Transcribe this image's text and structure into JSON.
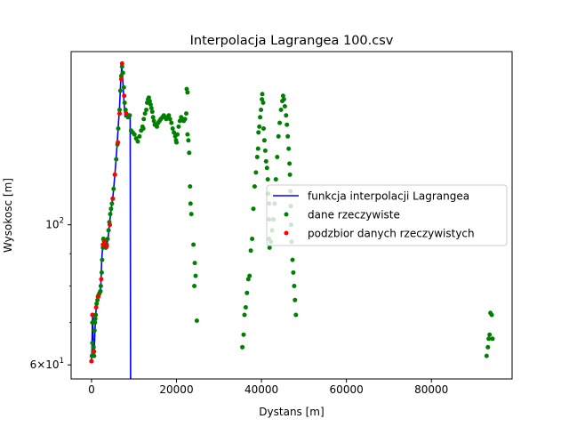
{
  "chart_data": {
    "type": "scatter",
    "title": "Interpolacja Lagrangea 100.csv",
    "xlabel": "Dystans [m]",
    "ylabel": "Wysokosc [m]",
    "xlim": [
      -4800,
      99000
    ],
    "ylim": [
      57,
      188
    ],
    "yscale": "log",
    "grid": false,
    "legend_position": "center-right",
    "x_ticks": [
      {
        "value": 0,
        "label": "0"
      },
      {
        "value": 20000,
        "label": "20000"
      },
      {
        "value": 40000,
        "label": "40000"
      },
      {
        "value": 60000,
        "label": "60000"
      },
      {
        "value": 80000,
        "label": "80000"
      }
    ],
    "y_ticks": [
      {
        "value": 60,
        "label": "6×10",
        "exp": "1"
      },
      {
        "value": 100,
        "label": "10",
        "exp": "2"
      }
    ],
    "y_minor_ticks": [
      70,
      80,
      90
    ],
    "legend": [
      {
        "label": "funkcja interpolacji Lagrangea",
        "kind": "line",
        "color": "#0000ff"
      },
      {
        "label": "dane rzeczywiste",
        "kind": "marker",
        "color": "#008000"
      },
      {
        "label": "podzbior danych rzeczywistych",
        "kind": "marker",
        "color": "#ff0000"
      }
    ],
    "series": [
      {
        "name": "funkcja interpolacji Lagrangea",
        "kind": "line",
        "color": "#0000ff",
        "points": [
          [
            0,
            60.8
          ],
          [
            100,
            63
          ],
          [
            200,
            70
          ],
          [
            300,
            72.5
          ],
          [
            400,
            64
          ],
          [
            600,
            62
          ],
          [
            800,
            68
          ],
          [
            1000,
            72
          ],
          [
            1200,
            76
          ],
          [
            1500,
            77
          ],
          [
            1800,
            77.5
          ],
          [
            2000,
            78.5
          ],
          [
            2200,
            80
          ],
          [
            2400,
            88
          ],
          [
            2600,
            92
          ],
          [
            2800,
            95
          ],
          [
            3000,
            94.5
          ],
          [
            3300,
            92
          ],
          [
            3600,
            93
          ],
          [
            3900,
            95
          ],
          [
            4200,
            100
          ],
          [
            4500,
            104
          ],
          [
            4800,
            108
          ],
          [
            5000,
            110
          ],
          [
            5300,
            116
          ],
          [
            5700,
            125
          ],
          [
            6000,
            133
          ],
          [
            6300,
            143
          ],
          [
            6600,
            154
          ],
          [
            6900,
            170
          ],
          [
            7100,
            178
          ],
          [
            7300,
            172
          ],
          [
            7600,
            158
          ],
          [
            7900,
            148
          ],
          [
            8200,
            150
          ],
          [
            8500,
            149
          ],
          [
            8800,
            148
          ],
          [
            9100,
            150
          ],
          [
            9200,
            57
          ]
        ]
      },
      {
        "name": "dane rzeczywiste",
        "kind": "scatter",
        "color": "#008000",
        "points": [
          [
            0,
            60.8
          ],
          [
            100,
            62
          ],
          [
            200,
            65
          ],
          [
            200,
            70
          ],
          [
            300,
            72
          ],
          [
            400,
            63
          ],
          [
            500,
            64
          ],
          [
            600,
            62
          ],
          [
            700,
            68
          ],
          [
            800,
            70
          ],
          [
            900,
            71
          ],
          [
            1000,
            72
          ],
          [
            1200,
            75
          ],
          [
            1400,
            76
          ],
          [
            1500,
            77
          ],
          [
            1700,
            77.5
          ],
          [
            1900,
            78
          ],
          [
            2100,
            78.5
          ],
          [
            2200,
            80
          ],
          [
            2400,
            84
          ],
          [
            2500,
            88
          ],
          [
            2700,
            92
          ],
          [
            2800,
            95
          ],
          [
            2900,
            94.5
          ],
          [
            3000,
            94
          ],
          [
            3200,
            92.5
          ],
          [
            3400,
            92
          ],
          [
            3600,
            93
          ],
          [
            3800,
            95
          ],
          [
            4000,
            98
          ],
          [
            4200,
            101
          ],
          [
            4400,
            104
          ],
          [
            4600,
            106
          ],
          [
            4800,
            108
          ],
          [
            5000,
            110
          ],
          [
            5200,
            114
          ],
          [
            5500,
            120
          ],
          [
            5800,
            127
          ],
          [
            6100,
            134
          ],
          [
            6300,
            142
          ],
          [
            6600,
            152
          ],
          [
            6800,
            163
          ],
          [
            7000,
            172
          ],
          [
            7200,
            178
          ],
          [
            7400,
            174
          ],
          [
            7600,
            165
          ],
          [
            7800,
            156
          ],
          [
            8000,
            152
          ],
          [
            8200,
            150
          ],
          [
            8400,
            149
          ],
          [
            8600,
            148
          ],
          [
            8800,
            148.5
          ],
          [
            9000,
            149
          ],
          [
            9300,
            141
          ],
          [
            9700,
            140
          ],
          [
            10100,
            139
          ],
          [
            10500,
            137
          ],
          [
            10900,
            135.5
          ],
          [
            11300,
            138
          ],
          [
            11700,
            141
          ],
          [
            12000,
            143
          ],
          [
            12200,
            142
          ],
          [
            12300,
            147
          ],
          [
            12600,
            150
          ],
          [
            12900,
            152
          ],
          [
            13100,
            156
          ],
          [
            13300,
            158
          ],
          [
            13500,
            159
          ],
          [
            13700,
            157
          ],
          [
            13900,
            155
          ],
          [
            14100,
            153
          ],
          [
            14300,
            151
          ],
          [
            14500,
            148
          ],
          [
            14700,
            146
          ],
          [
            14900,
            144
          ],
          [
            15100,
            144
          ],
          [
            15400,
            143
          ],
          [
            15700,
            145
          ],
          [
            16000,
            146
          ],
          [
            16300,
            147
          ],
          [
            16700,
            148
          ],
          [
            17000,
            149
          ],
          [
            17300,
            148
          ],
          [
            17600,
            147
          ],
          [
            17900,
            148
          ],
          [
            18200,
            149
          ],
          [
            18500,
            147
          ],
          [
            18800,
            145
          ],
          [
            19100,
            142
          ],
          [
            19400,
            140
          ],
          [
            19700,
            138
          ],
          [
            19900,
            136
          ],
          [
            20000,
            135
          ],
          [
            20200,
            139
          ],
          [
            20500,
            143
          ],
          [
            20800,
            146
          ],
          [
            21100,
            148
          ],
          [
            21400,
            147
          ],
          [
            21700,
            146
          ],
          [
            22000,
            147
          ],
          [
            22300,
            150
          ],
          [
            22600,
            162
          ],
          [
            22400,
            164
          ],
          [
            22600,
            139
          ],
          [
            22800,
            136
          ],
          [
            23000,
            130
          ],
          [
            23200,
            115
          ],
          [
            23300,
            108
          ],
          [
            23500,
            104
          ],
          [
            24000,
            93
          ],
          [
            24300,
            87
          ],
          [
            24500,
            83
          ],
          [
            24200,
            80
          ],
          [
            24800,
            70.5
          ],
          [
            35500,
            64
          ],
          [
            35800,
            67
          ],
          [
            36000,
            72
          ],
          [
            36300,
            74
          ],
          [
            36600,
            78
          ],
          [
            36900,
            82
          ],
          [
            37200,
            83
          ],
          [
            37500,
            91
          ],
          [
            37800,
            95
          ],
          [
            38100,
            106
          ],
          [
            38400,
            115
          ],
          [
            38700,
            121
          ],
          [
            39000,
            128
          ],
          [
            39200,
            132
          ],
          [
            39300,
            140
          ],
          [
            39500,
            143
          ],
          [
            39700,
            148
          ],
          [
            39900,
            152
          ],
          [
            40100,
            158
          ],
          [
            40200,
            161
          ],
          [
            40400,
            156
          ],
          [
            40500,
            142
          ],
          [
            40700,
            136
          ],
          [
            40900,
            131
          ],
          [
            41100,
            126
          ],
          [
            41300,
            123
          ],
          [
            41500,
            118
          ],
          [
            41600,
            112
          ],
          [
            41800,
            108
          ],
          [
            41800,
            102
          ],
          [
            41800,
            95
          ],
          [
            41900,
            92
          ],
          [
            42200,
            94
          ],
          [
            42500,
            98
          ],
          [
            42800,
            102
          ],
          [
            43100,
            108
          ],
          [
            43400,
            118
          ],
          [
            43700,
            128
          ],
          [
            44000,
            138
          ],
          [
            44300,
            145
          ],
          [
            44600,
            152
          ],
          [
            44900,
            157
          ],
          [
            45100,
            160
          ],
          [
            45300,
            158
          ],
          [
            45500,
            154
          ],
          [
            45800,
            149
          ],
          [
            46000,
            144
          ],
          [
            46200,
            138
          ],
          [
            46400,
            132
          ],
          [
            46600,
            125
          ],
          [
            46700,
            120
          ],
          [
            46800,
            113
          ],
          [
            46900,
            107
          ],
          [
            47000,
            100
          ],
          [
            47100,
            94
          ],
          [
            47300,
            88
          ],
          [
            47500,
            84
          ],
          [
            47700,
            80
          ],
          [
            47900,
            76
          ],
          [
            48100,
            72
          ],
          [
            93000,
            62
          ],
          [
            93300,
            64
          ],
          [
            93500,
            66
          ],
          [
            93700,
            67
          ],
          [
            93900,
            72.5
          ],
          [
            94200,
            72
          ],
          [
            94400,
            66
          ]
        ]
      },
      {
        "name": "podzbior danych rzeczywistych",
        "kind": "scatter",
        "color": "#ff0000",
        "points": [
          [
            0,
            60.8
          ],
          [
            200,
            72
          ],
          [
            600,
            63
          ],
          [
            1100,
            74
          ],
          [
            1600,
            77
          ],
          [
            2300,
            82
          ],
          [
            2700,
            93
          ],
          [
            3100,
            94
          ],
          [
            3600,
            92.5
          ],
          [
            4300,
            100
          ],
          [
            5000,
            110
          ],
          [
            5500,
            120
          ],
          [
            6200,
            135
          ],
          [
            6600,
            150
          ],
          [
            7000,
            170
          ],
          [
            7200,
            180
          ],
          [
            7700,
            160
          ],
          [
            8200,
            150
          ]
        ]
      }
    ]
  }
}
